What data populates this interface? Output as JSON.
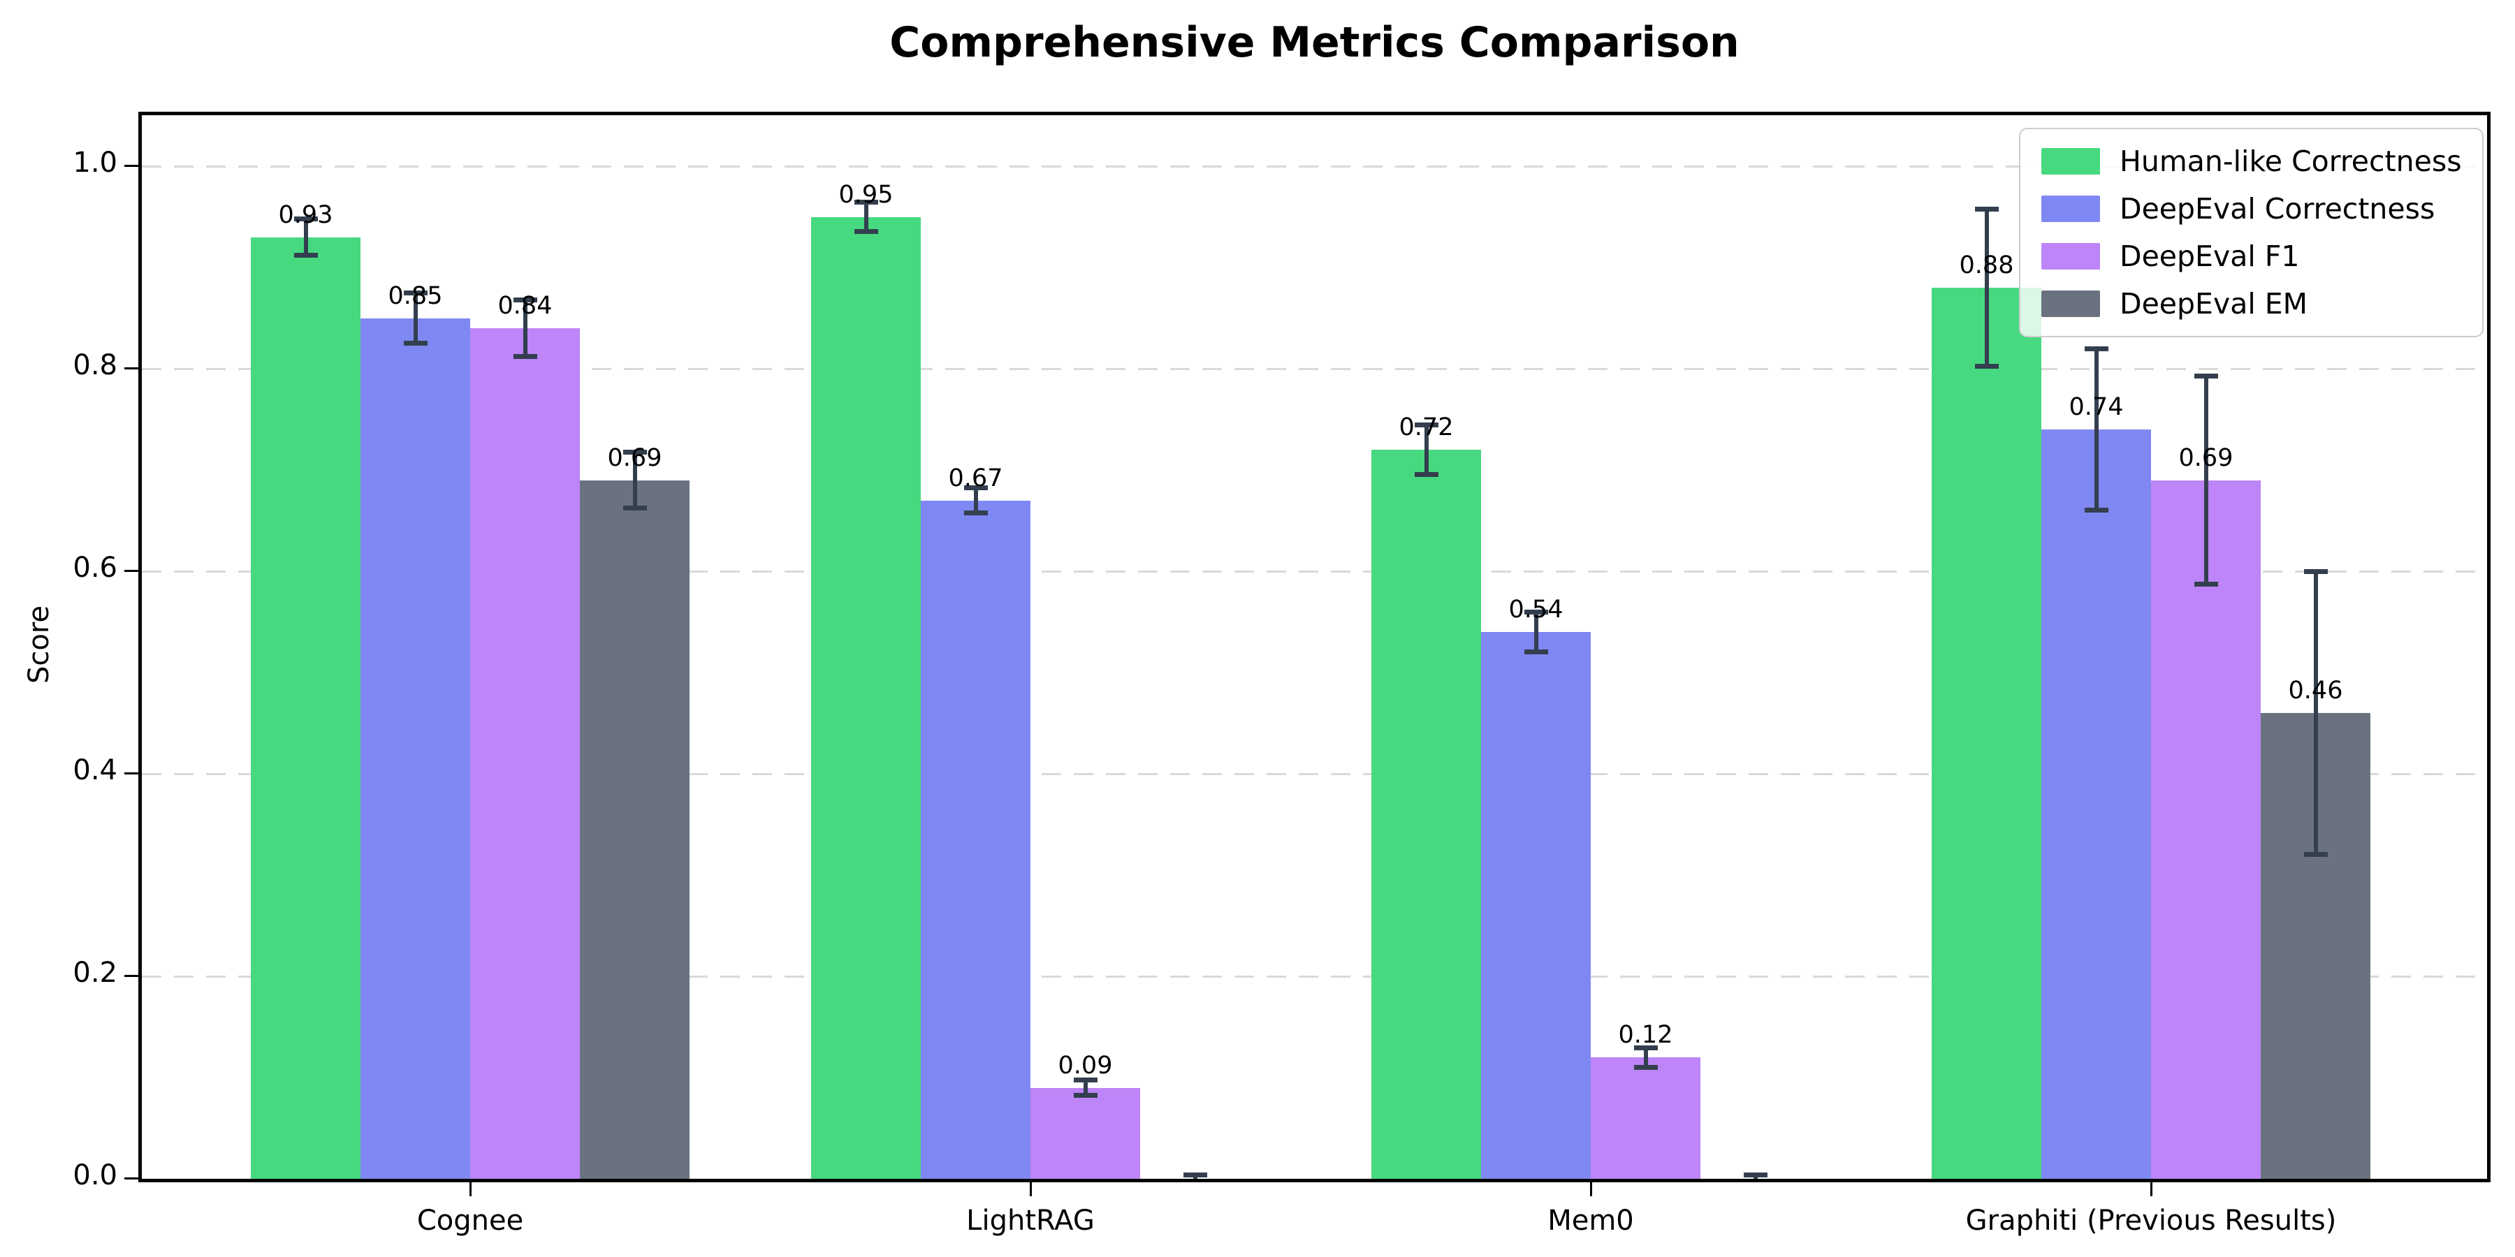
{
  "chart_data": {
    "type": "bar",
    "title": "Comprehensive Metrics Comparison",
    "ylabel": "Score",
    "categories": [
      "Cognee",
      "LightRAG",
      "Mem0",
      "Graphiti (Previous Results)"
    ],
    "series": [
      {
        "name": "Human-like Correctness",
        "color": "#47d97f",
        "values": [
          0.93,
          0.95,
          0.72,
          0.88
        ],
        "errors": [
          0.018,
          0.015,
          0.025,
          0.078
        ],
        "labels": [
          "0.93",
          "0.95",
          "0.72",
          "0.88"
        ]
      },
      {
        "name": "DeepEval Correctness",
        "color": "#7f88f2",
        "values": [
          0.85,
          0.67,
          0.54,
          0.74
        ],
        "errors": [
          0.025,
          0.013,
          0.02,
          0.08
        ],
        "labels": [
          "0.85",
          "0.67",
          "0.54",
          "0.74"
        ]
      },
      {
        "name": "DeepEval F1",
        "color": "#bd85f7",
        "values": [
          0.84,
          0.09,
          0.12,
          0.69
        ],
        "errors": [
          0.028,
          0.008,
          0.01,
          0.103
        ],
        "labels": [
          "0.84",
          "0.09",
          "0.12",
          "0.69"
        ]
      },
      {
        "name": "DeepEval EM",
        "color": "#6a7280",
        "values": [
          0.69,
          0.0,
          0.0,
          0.46
        ],
        "errors": [
          0.028,
          0.004,
          0.004,
          0.14
        ],
        "labels": [
          "0.69",
          "",
          "",
          "0.46"
        ]
      }
    ],
    "yticks": [
      "0.0",
      "0.2",
      "0.4",
      "0.6",
      "0.8",
      "1.0"
    ],
    "ylim": [
      0,
      1.05
    ],
    "grid": "dashed-horizontal",
    "legend_position": "upper right",
    "error_bar_color": "#333f4e",
    "grid_color": "#d9d9d9",
    "axis_color": "#000000"
  }
}
